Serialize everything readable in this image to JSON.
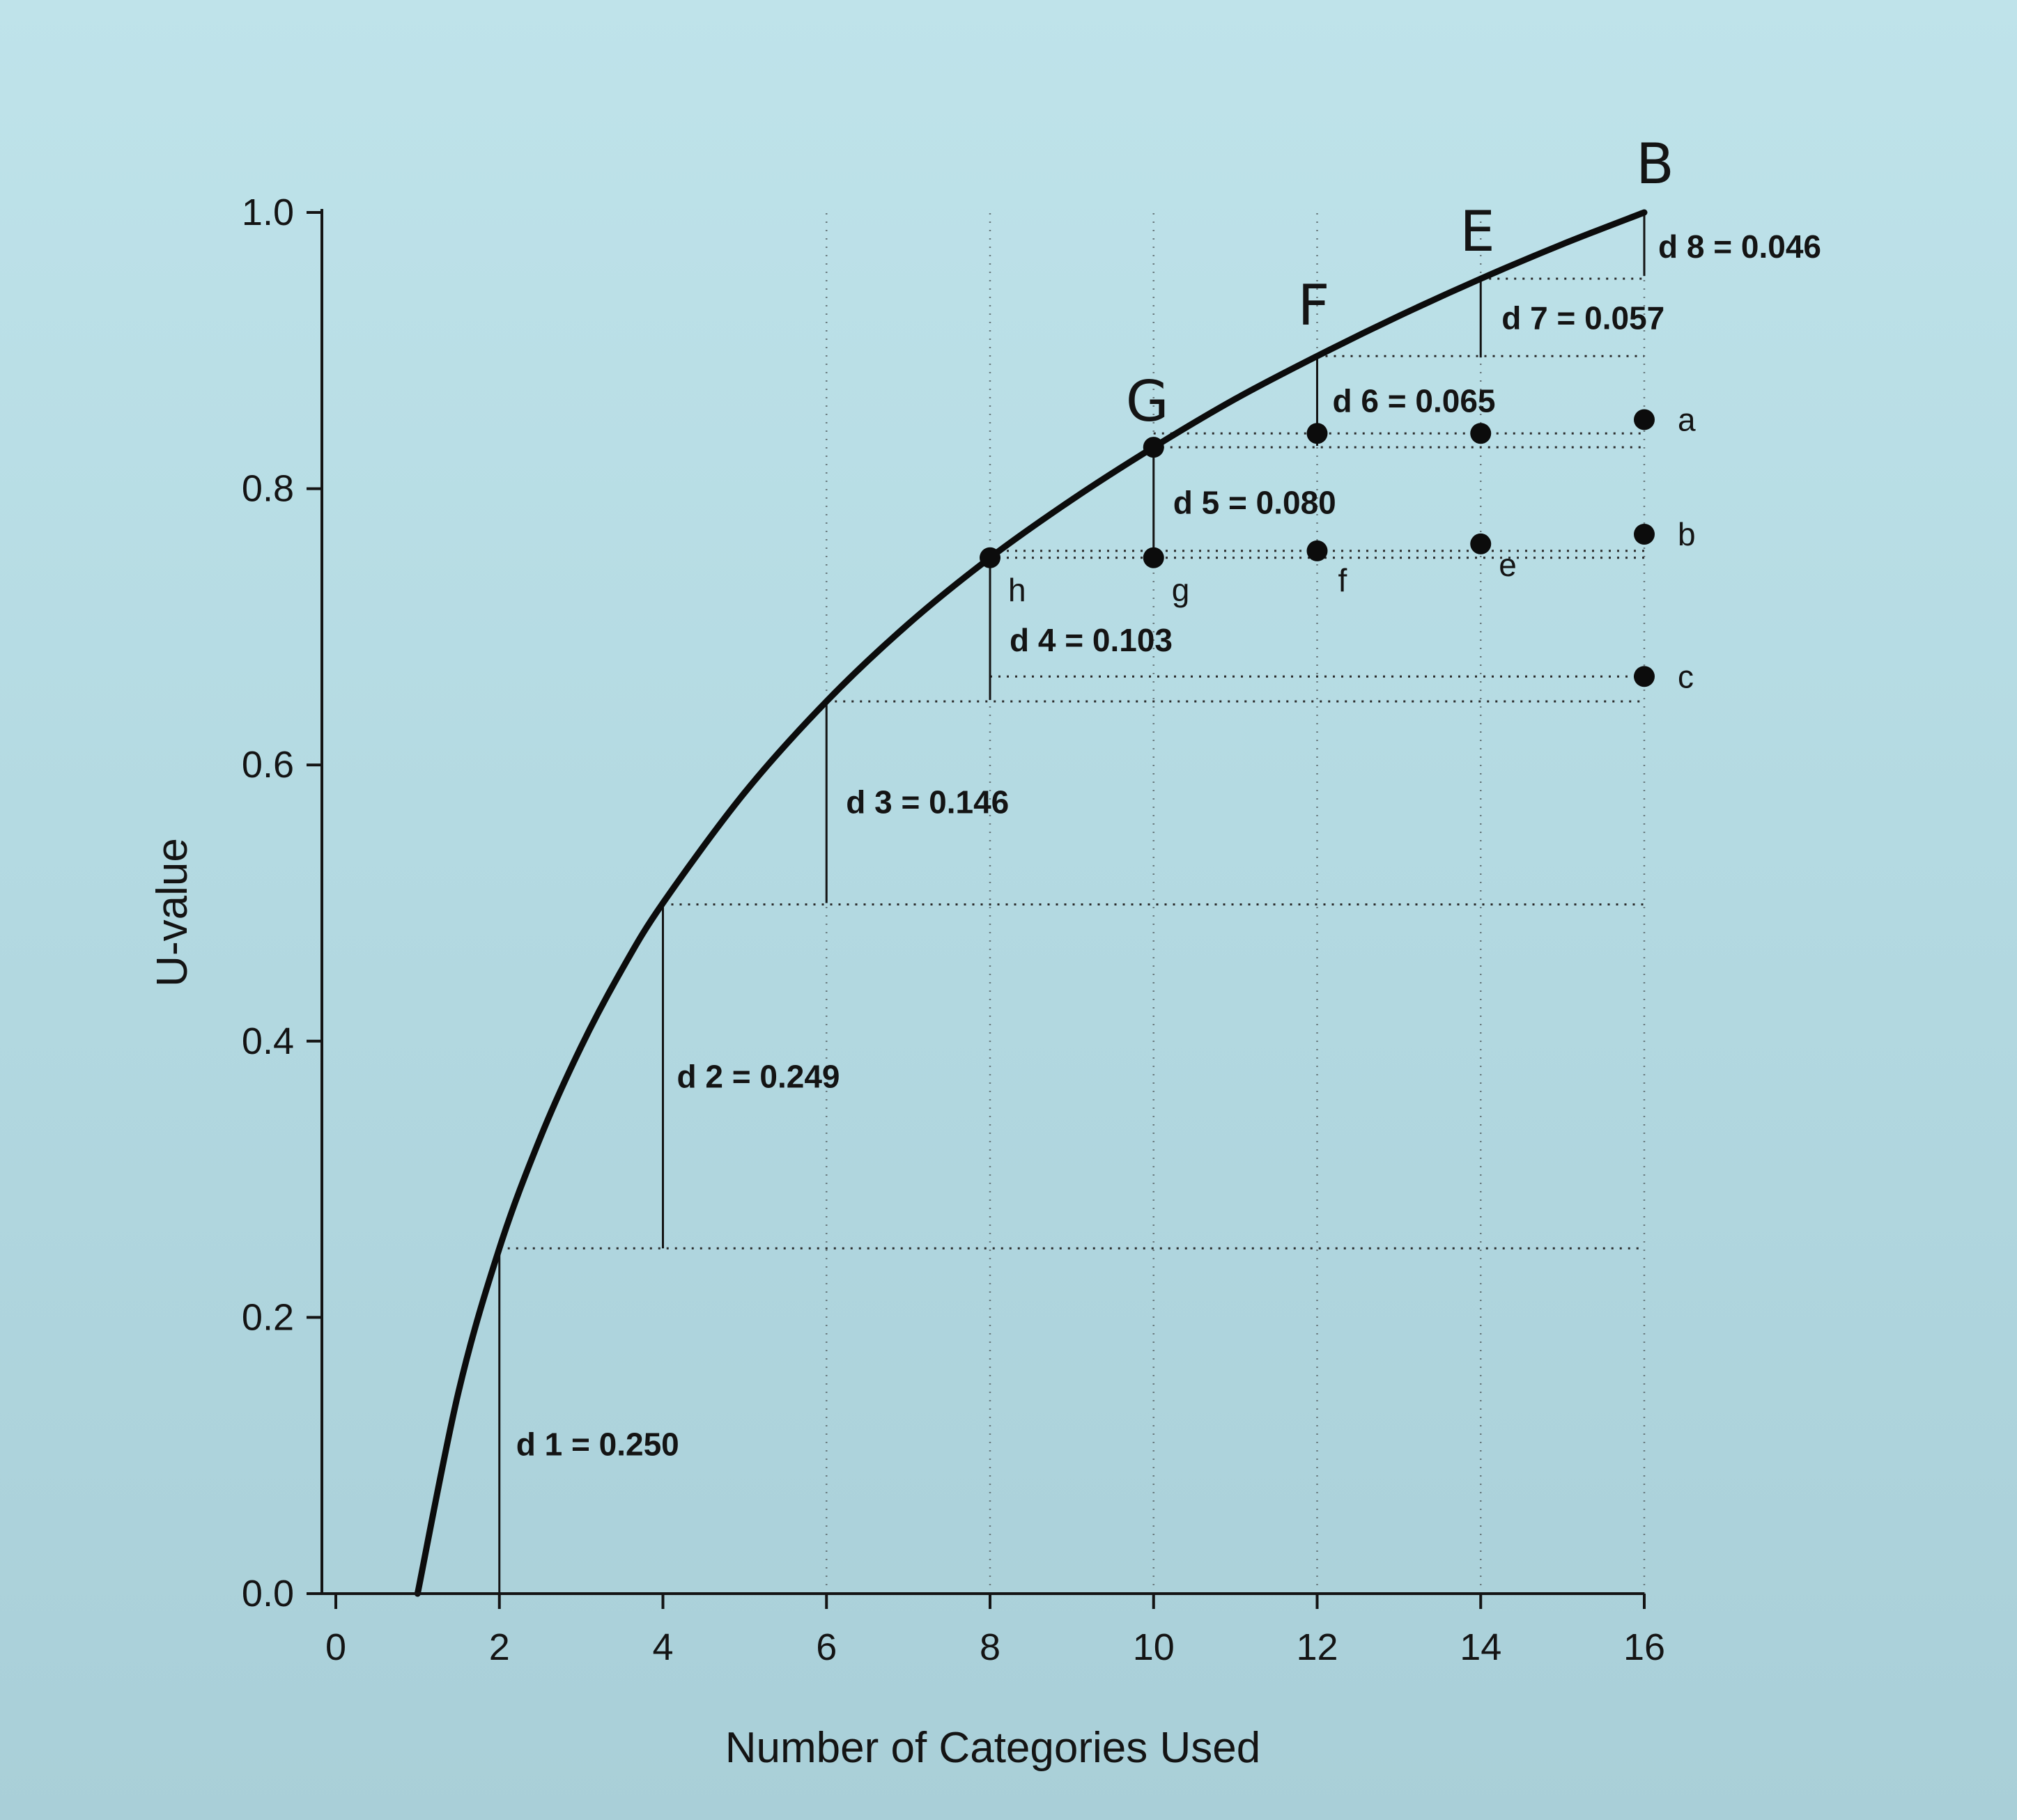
{
  "chart_data": {
    "type": "line",
    "title": "",
    "xlabel": "Number of Categories Used",
    "ylabel": "U-value",
    "xlim": [
      0,
      16
    ],
    "ylim": [
      0,
      1.0
    ],
    "xticks": [
      0,
      2,
      4,
      6,
      8,
      10,
      12,
      14,
      16
    ],
    "xtick_labels": [
      "0",
      "2",
      "4",
      "6",
      "8",
      "10",
      "12",
      "14",
      "16"
    ],
    "yticks": [
      0,
      0.2,
      0.4,
      0.6,
      0.8,
      1.0
    ],
    "ytick_labels": [
      "0.0",
      "0.2",
      "0.4",
      "0.6",
      "0.8",
      "1.0"
    ],
    "grid": false,
    "curve": {
      "x": [
        1,
        1.5,
        2,
        2.5,
        3,
        3.5,
        4,
        5,
        6,
        7,
        8,
        9,
        10,
        11,
        12,
        13,
        14,
        15,
        16
      ],
      "y": [
        0,
        0.146,
        0.25,
        0.33,
        0.396,
        0.452,
        0.5,
        0.58,
        0.646,
        0.702,
        0.75,
        0.792,
        0.83,
        0.865,
        0.896,
        0.925,
        0.952,
        0.977,
        1.0
      ]
    },
    "differences": [
      {
        "label": "d 1 = 0.250",
        "x": 2,
        "y_low": 0,
        "y_high": 0.25
      },
      {
        "label": "d 2 = 0.249",
        "x": 4,
        "y_low": 0.25,
        "y_high": 0.499
      },
      {
        "label": "d 3 = 0.146",
        "x": 6,
        "y_low": 0.5,
        "y_high": 0.646
      },
      {
        "label": "d 4 = 0.103",
        "x": 8,
        "y_low": 0.647,
        "y_high": 0.75
      },
      {
        "label": "d 5 = 0.080",
        "x": 10,
        "y_low": 0.75,
        "y_high": 0.83
      },
      {
        "label": "d 6 = 0.065",
        "x": 12,
        "y_low": 0.831,
        "y_high": 0.896
      },
      {
        "label": "d 7 = 0.057",
        "x": 14,
        "y_low": 0.895,
        "y_high": 0.952
      },
      {
        "label": "d 8 = 0.046",
        "x": 16,
        "y_low": 0.954,
        "y_high": 1.0
      }
    ],
    "points": [
      {
        "label": "h",
        "x": 8,
        "y": 0.75
      },
      {
        "label": "G",
        "x": 10,
        "y": 0.83
      },
      {
        "label": "g",
        "x": 10,
        "y": 0.75
      },
      {
        "label": "",
        "x": 12,
        "y": 0.84
      },
      {
        "label": "f",
        "x": 12,
        "y": 0.755
      },
      {
        "label": "",
        "x": 14,
        "y": 0.84
      },
      {
        "label": "e",
        "x": 14,
        "y": 0.76
      },
      {
        "label": "a",
        "x": 16,
        "y": 0.85
      },
      {
        "label": "b",
        "x": 16,
        "y": 0.767
      },
      {
        "label": "c",
        "x": 16,
        "y": 0.664
      }
    ],
    "curve_labels": [
      {
        "label": "G",
        "x": 10
      },
      {
        "label": "F",
        "x": 12
      },
      {
        "label": "E",
        "x": 14
      },
      {
        "label": "B",
        "x": 16
      }
    ],
    "colors": {
      "ink": "#141414",
      "paper": "#b4dae2"
    }
  }
}
